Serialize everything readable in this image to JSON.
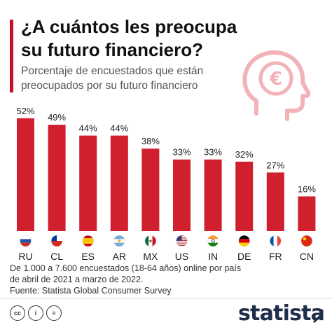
{
  "header": {
    "title_line1": "¿A cuántos les preocupa",
    "title_line2": "su futuro financiero?",
    "subtitle_line1": "Porcentaje de encuestados que están",
    "subtitle_line2": "preocupados por su futuro financiero"
  },
  "icon": {
    "name": "head-with-euro-icon",
    "symbol": "€",
    "color": "#f2b3b8"
  },
  "chart_data": {
    "type": "bar",
    "categories": [
      "RU",
      "CL",
      "ES",
      "AR",
      "MX",
      "US",
      "IN",
      "DE",
      "FR",
      "CN"
    ],
    "values": [
      52,
      49,
      44,
      44,
      38,
      33,
      33,
      32,
      27,
      16
    ],
    "value_labels": [
      "52%",
      "49%",
      "44%",
      "44%",
      "38%",
      "33%",
      "33%",
      "32%",
      "27%",
      "16%"
    ],
    "flag_icons": [
      "russia-flag-icon",
      "chile-flag-icon",
      "spain-flag-icon",
      "argentina-flag-icon",
      "mexico-flag-icon",
      "usa-flag-icon",
      "india-flag-icon",
      "germany-flag-icon",
      "france-flag-icon",
      "china-flag-icon"
    ],
    "bar_color": "#d0202e",
    "ylim": [
      0,
      55
    ],
    "title": "",
    "xlabel": "",
    "ylabel": "",
    "grid": false
  },
  "notes": {
    "line1": "De 1.000 a 7.600 encuestados (18-64 años) online por país",
    "line2": "de abril de 2021 a marzo de 2022.",
    "line3": "Fuente: Statista Global Consumer Survey"
  },
  "footer": {
    "license_icons": [
      "cc",
      "i",
      "="
    ],
    "brand": "statista"
  }
}
